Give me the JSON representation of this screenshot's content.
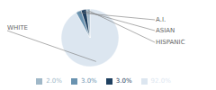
{
  "chart_data": {
    "type": "pie",
    "categories": [
      "WHITE",
      "A.I.",
      "ASIAN",
      "HISPANIC"
    ],
    "values": [
      92.0,
      3.0,
      3.0,
      2.0
    ],
    "value_labels": [
      "92.0%",
      "3.0%",
      "3.0%",
      "2.0%"
    ],
    "colors": [
      "#dce6f0",
      "#6a93b0",
      "#1f4060",
      "#a0b8c8"
    ],
    "legend": "bottom"
  }
}
